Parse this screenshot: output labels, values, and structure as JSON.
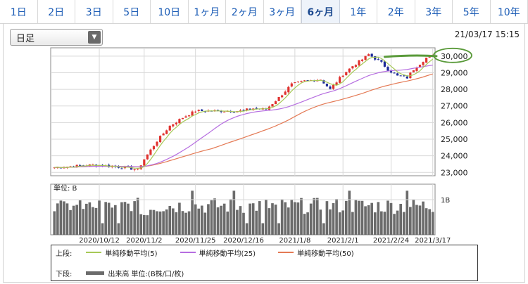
{
  "tabs": [
    {
      "label": "1日",
      "active": false
    },
    {
      "label": "2日",
      "active": false
    },
    {
      "label": "3日",
      "active": false
    },
    {
      "label": "5日",
      "active": false
    },
    {
      "label": "10日",
      "active": false
    },
    {
      "label": "1ヶ月",
      "active": false
    },
    {
      "label": "2ヶ月",
      "active": false
    },
    {
      "label": "3ヶ月",
      "active": false
    },
    {
      "label": "6ヶ月",
      "active": true
    },
    {
      "label": "1年",
      "active": false
    },
    {
      "label": "2年",
      "active": false
    },
    {
      "label": "3年",
      "active": false
    },
    {
      "label": "5年",
      "active": false
    },
    {
      "label": "10年",
      "active": false
    }
  ],
  "period_select": {
    "value": "日足"
  },
  "timestamp": "21/03/17 15:15",
  "colors": {
    "up": "#e0322f",
    "down": "#1c2a99",
    "ma5": "#a7c957",
    "ma25": "#b66ee0",
    "ma50": "#e47a55",
    "volume": "#6b6b6b",
    "annotation": "#5a9a3a"
  },
  "volume_panel": {
    "unit_label": "単位: B",
    "tick": "1B"
  },
  "legend": {
    "upper_label": "上段:",
    "lower_label": "下段:",
    "ma5": "単純移動平均(5)",
    "ma25": "単純移動平均(25)",
    "ma50": "単純移動平均(50)",
    "volume": "出来高 単位:(B株/口/枚)"
  },
  "chart_data": {
    "type": "candlestick",
    "x_labels": [
      "2020/10/12",
      "2020/11/2",
      "2020/11/25",
      "2020/12/16",
      "2021/1/8",
      "2021/2/1",
      "2021/2/24",
      "2021/3/17"
    ],
    "y_ticks": [
      "23,000",
      "24,000",
      "25,000",
      "26,000",
      "27,000",
      "28,000",
      "29,000",
      "30,000"
    ],
    "ylim": [
      22800,
      30500
    ],
    "price_keypoints": [
      [
        0,
        23300
      ],
      [
        12,
        23450
      ],
      [
        22,
        23300
      ],
      [
        26,
        23150
      ],
      [
        28,
        23800
      ],
      [
        32,
        24900
      ],
      [
        36,
        25800
      ],
      [
        40,
        26300
      ],
      [
        44,
        26700
      ],
      [
        50,
        26700
      ],
      [
        58,
        26700
      ],
      [
        62,
        26850
      ],
      [
        66,
        26800
      ],
      [
        70,
        27500
      ],
      [
        74,
        28300
      ],
      [
        78,
        28500
      ],
      [
        83,
        28600
      ],
      [
        86,
        28000
      ],
      [
        90,
        28900
      ],
      [
        93,
        29400
      ],
      [
        96,
        29800
      ],
      [
        98,
        30100
      ],
      [
        102,
        29600
      ],
      [
        104,
        29200
      ],
      [
        107,
        28800
      ],
      [
        110,
        28700
      ],
      [
        112,
        29200
      ],
      [
        116,
        29900
      ],
      [
        118,
        30000
      ]
    ],
    "current_price_annotation": "30,000"
  }
}
